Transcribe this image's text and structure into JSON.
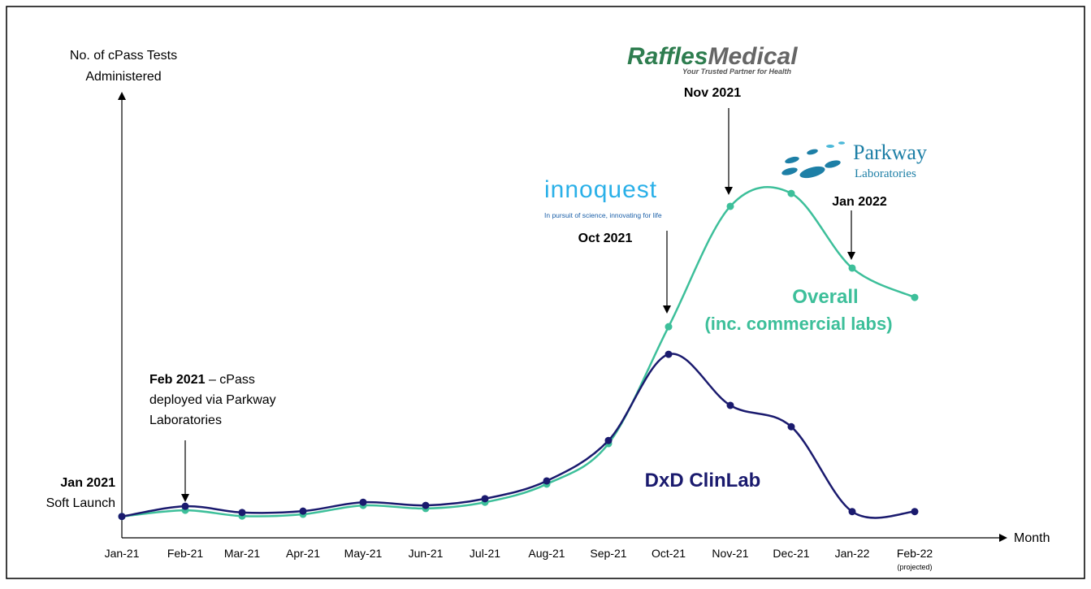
{
  "chart_data": {
    "type": "line",
    "y_label": [
      "No. of cPass Tests",
      "Administered"
    ],
    "x_label": "Month",
    "categories": [
      "Jan-21",
      "Feb-21",
      "Mar-21",
      "Apr-21",
      "May-21",
      "Jun-21",
      "Jul-21",
      "Aug-21",
      "Sep-21",
      "Oct-21",
      "Nov-21",
      "Dec-21",
      "Jan-22",
      "Feb-22"
    ],
    "x_note": "(projected)",
    "ylim": [
      0,
      100
    ],
    "series": [
      {
        "name": "Overall",
        "color": "#3dbf9a",
        "values": [
          4.8,
          6.2,
          4.9,
          5.3,
          7.3,
          6.6,
          8.0,
          12.1,
          21.2,
          47.5,
          74.6,
          77.5,
          60.7,
          54.1
        ]
      },
      {
        "name": "DxD ClinLab",
        "color": "#1a1a6e",
        "values": [
          4.8,
          7.1,
          5.7,
          6.0,
          8.0,
          7.3,
          8.8,
          12.8,
          21.9,
          41.3,
          29.8,
          25.0,
          5.9,
          5.9
        ]
      }
    ],
    "overall_note": "(inc. commercial labs)",
    "annotations": {
      "jan2021": {
        "bold": "Jan 2021",
        "text": "Soft Launch"
      },
      "feb2021": {
        "bold": "Feb 2021",
        "text": [
          "– cPass",
          "deployed via Parkway",
          "Laboratories"
        ]
      },
      "oct2021": "Oct 2021",
      "nov2021": "Nov 2021",
      "jan2022": "Jan 2022"
    },
    "logos": {
      "raffles": {
        "name_a": "Raffles",
        "name_b": "Medical",
        "tagline": "Your Trusted Partner for Health"
      },
      "innoquest": {
        "name": "innoquest",
        "tagline": "In pursuit of science, innovating for life"
      },
      "parkway": {
        "name": "Parkway",
        "sub": "Laboratories"
      }
    }
  }
}
